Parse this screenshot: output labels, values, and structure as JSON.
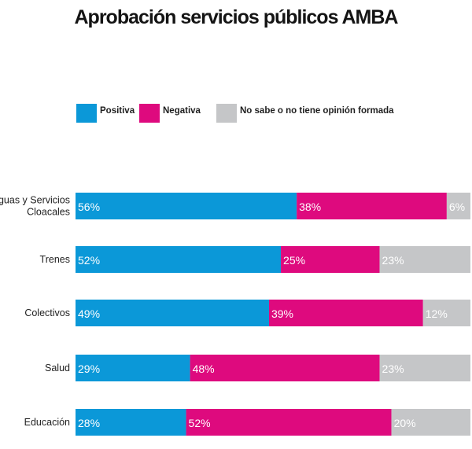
{
  "chart_data": {
    "type": "bar",
    "orientation": "horizontal",
    "stacked": true,
    "title": "Aprobación servicios públicos AMBA",
    "legend_position": "top",
    "categories": [
      [
        "Aguas y Servicios",
        "Cloacales"
      ],
      [
        "Trenes"
      ],
      [
        "Colectivos"
      ],
      [
        "Salud"
      ],
      [
        "Educación"
      ]
    ],
    "series": [
      {
        "name": "Positiva",
        "color": "#0b98d8",
        "values": [
          56,
          52,
          49,
          29,
          28
        ]
      },
      {
        "name": "Negativa",
        "color": "#de0a7e",
        "values": [
          38,
          25,
          39,
          48,
          52
        ]
      },
      {
        "name": "No sabe o no tiene opinión formada",
        "color": "#c5c6c8",
        "values": [
          6,
          23,
          12,
          23,
          20
        ]
      }
    ],
    "data_labels": [
      [
        "56%",
        "38%",
        "6%"
      ],
      [
        "52%",
        "25%",
        "23%"
      ],
      [
        "49%",
        "39%",
        "12%"
      ],
      [
        "29%",
        "48%",
        "23%"
      ],
      [
        "28%",
        "52%",
        "20%"
      ]
    ],
    "xlim": [
      0,
      100
    ],
    "grid": false
  }
}
